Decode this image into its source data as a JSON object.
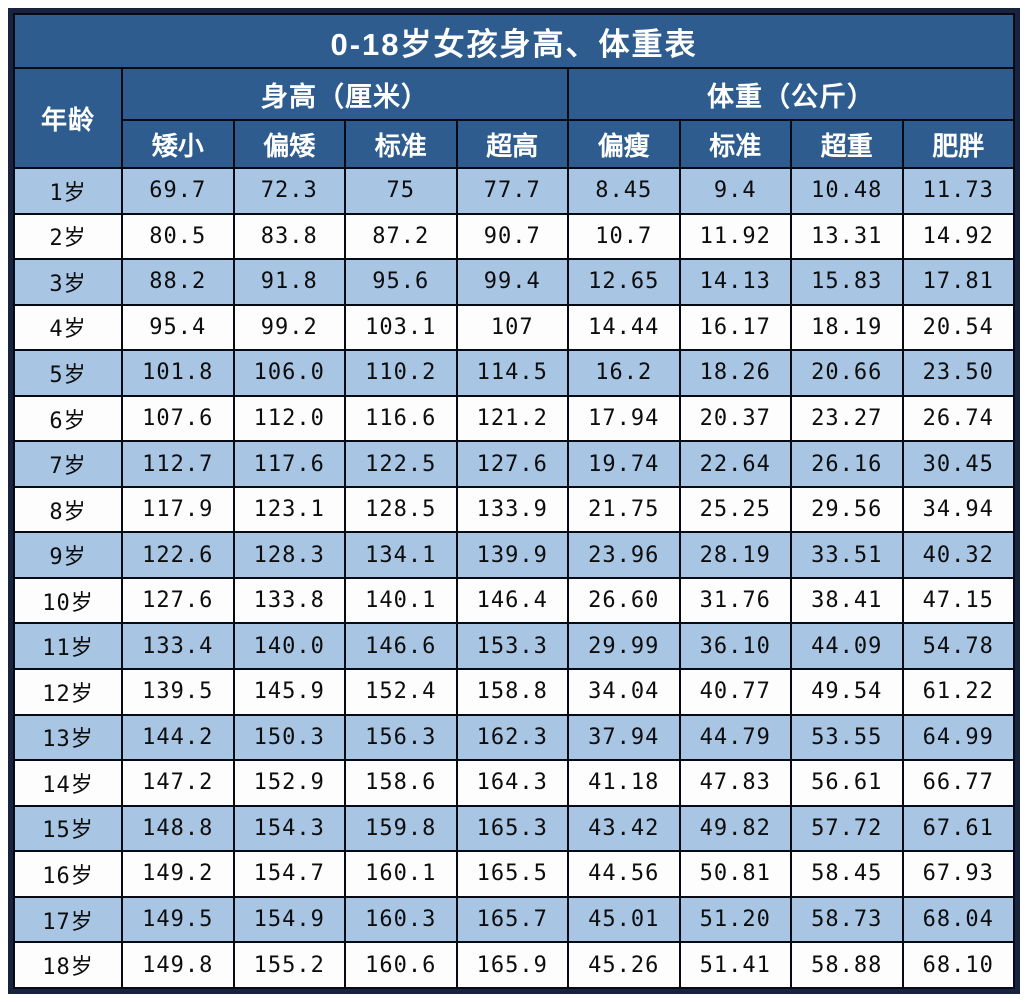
{
  "title": "0-18岁女孩身高、体重表",
  "header": {
    "age_label": "年龄",
    "height_group": "身高（厘米）",
    "weight_group": "体重（公斤）",
    "sub_columns": [
      "矮小",
      "偏矮",
      "标准",
      "超高",
      "偏瘦",
      "标准",
      "超重",
      "肥胖"
    ]
  },
  "rows": [
    {
      "age": "1岁",
      "values": [
        "69.7",
        "72.3",
        "75",
        "77.7",
        "8.45",
        "9.4",
        "10.48",
        "11.73"
      ]
    },
    {
      "age": "2岁",
      "values": [
        "80.5",
        "83.8",
        "87.2",
        "90.7",
        "10.7",
        "11.92",
        "13.31",
        "14.92"
      ]
    },
    {
      "age": "3岁",
      "values": [
        "88.2",
        "91.8",
        "95.6",
        "99.4",
        "12.65",
        "14.13",
        "15.83",
        "17.81"
      ]
    },
    {
      "age": "4岁",
      "values": [
        "95.4",
        "99.2",
        "103.1",
        "107",
        "14.44",
        "16.17",
        "18.19",
        "20.54"
      ]
    },
    {
      "age": "5岁",
      "values": [
        "101.8",
        "106.0",
        "110.2",
        "114.5",
        "16.2",
        "18.26",
        "20.66",
        "23.50"
      ]
    },
    {
      "age": "6岁",
      "values": [
        "107.6",
        "112.0",
        "116.6",
        "121.2",
        "17.94",
        "20.37",
        "23.27",
        "26.74"
      ]
    },
    {
      "age": "7岁",
      "values": [
        "112.7",
        "117.6",
        "122.5",
        "127.6",
        "19.74",
        "22.64",
        "26.16",
        "30.45"
      ]
    },
    {
      "age": "8岁",
      "values": [
        "117.9",
        "123.1",
        "128.5",
        "133.9",
        "21.75",
        "25.25",
        "29.56",
        "34.94"
      ]
    },
    {
      "age": "9岁",
      "values": [
        "122.6",
        "128.3",
        "134.1",
        "139.9",
        "23.96",
        "28.19",
        "33.51",
        "40.32"
      ]
    },
    {
      "age": "10岁",
      "values": [
        "127.6",
        "133.8",
        "140.1",
        "146.4",
        "26.60",
        "31.76",
        "38.41",
        "47.15"
      ]
    },
    {
      "age": "11岁",
      "values": [
        "133.4",
        "140.0",
        "146.6",
        "153.3",
        "29.99",
        "36.10",
        "44.09",
        "54.78"
      ]
    },
    {
      "age": "12岁",
      "values": [
        "139.5",
        "145.9",
        "152.4",
        "158.8",
        "34.04",
        "40.77",
        "49.54",
        "61.22"
      ]
    },
    {
      "age": "13岁",
      "values": [
        "144.2",
        "150.3",
        "156.3",
        "162.3",
        "37.94",
        "44.79",
        "53.55",
        "64.99"
      ]
    },
    {
      "age": "14岁",
      "values": [
        "147.2",
        "152.9",
        "158.6",
        "164.3",
        "41.18",
        "47.83",
        "56.61",
        "66.77"
      ]
    },
    {
      "age": "15岁",
      "values": [
        "148.8",
        "154.3",
        "159.8",
        "165.3",
        "43.42",
        "49.82",
        "57.72",
        "67.61"
      ]
    },
    {
      "age": "16岁",
      "values": [
        "149.2",
        "154.7",
        "160.1",
        "165.5",
        "44.56",
        "50.81",
        "58.45",
        "67.93"
      ]
    },
    {
      "age": "17岁",
      "values": [
        "149.5",
        "154.9",
        "160.3",
        "165.7",
        "45.01",
        "51.20",
        "58.73",
        "68.04"
      ]
    },
    {
      "age": "18岁",
      "values": [
        "149.8",
        "155.2",
        "160.6",
        "165.9",
        "45.26",
        "51.41",
        "58.88",
        "68.10"
      ]
    }
  ],
  "colors": {
    "header_bg": "#2e5c8e",
    "row_alt_bg": "#a8c5e4",
    "row_bg": "#fdfdfe",
    "grid_line": "#060a14",
    "outer_border": "#18243f",
    "header_text": "#ffffff",
    "cell_text": "#0d0d0d"
  },
  "chart_data": {
    "type": "table",
    "title": "0-18岁女孩身高、体重表",
    "categories": [
      "1岁",
      "2岁",
      "3岁",
      "4岁",
      "5岁",
      "6岁",
      "7岁",
      "8岁",
      "9岁",
      "10岁",
      "11岁",
      "12岁",
      "13岁",
      "14岁",
      "15岁",
      "16岁",
      "17岁",
      "18岁"
    ],
    "series": [
      {
        "name": "身高(厘米)-矮小",
        "values": [
          69.7,
          80.5,
          88.2,
          95.4,
          101.8,
          107.6,
          112.7,
          117.9,
          122.6,
          127.6,
          133.4,
          139.5,
          144.2,
          147.2,
          148.8,
          149.2,
          149.5,
          149.8
        ]
      },
      {
        "name": "身高(厘米)-偏矮",
        "values": [
          72.3,
          83.8,
          91.8,
          99.2,
          106.0,
          112.0,
          117.6,
          123.1,
          128.3,
          133.8,
          140.0,
          145.9,
          150.3,
          152.9,
          154.3,
          154.7,
          154.9,
          155.2
        ]
      },
      {
        "name": "身高(厘米)-标准",
        "values": [
          75,
          87.2,
          95.6,
          103.1,
          110.2,
          116.6,
          122.5,
          128.5,
          134.1,
          140.1,
          146.6,
          152.4,
          156.3,
          158.6,
          159.8,
          160.1,
          160.3,
          160.6
        ]
      },
      {
        "name": "身高(厘米)-超高",
        "values": [
          77.7,
          90.7,
          99.4,
          107,
          114.5,
          121.2,
          127.6,
          133.9,
          139.9,
          146.4,
          153.3,
          158.8,
          162.3,
          164.3,
          165.3,
          165.5,
          165.7,
          165.9
        ]
      },
      {
        "name": "体重(公斤)-偏瘦",
        "values": [
          8.45,
          10.7,
          12.65,
          14.44,
          16.2,
          17.94,
          19.74,
          21.75,
          23.96,
          26.6,
          29.99,
          34.04,
          37.94,
          41.18,
          43.42,
          44.56,
          45.01,
          45.26
        ]
      },
      {
        "name": "体重(公斤)-标准",
        "values": [
          9.4,
          11.92,
          14.13,
          16.17,
          18.26,
          20.37,
          22.64,
          25.25,
          28.19,
          31.76,
          36.1,
          40.77,
          44.79,
          47.83,
          49.82,
          50.81,
          51.2,
          51.41
        ]
      },
      {
        "name": "体重(公斤)-超重",
        "values": [
          10.48,
          13.31,
          15.83,
          18.19,
          20.66,
          23.27,
          26.16,
          29.56,
          33.51,
          38.41,
          44.09,
          49.54,
          53.55,
          56.61,
          57.72,
          58.45,
          58.73,
          58.88
        ]
      },
      {
        "name": "体重(公斤)-肥胖",
        "values": [
          11.73,
          14.92,
          17.81,
          20.54,
          23.5,
          26.74,
          30.45,
          34.94,
          40.32,
          47.15,
          54.78,
          61.22,
          64.99,
          66.77,
          67.61,
          67.93,
          68.04,
          68.1
        ]
      }
    ]
  }
}
